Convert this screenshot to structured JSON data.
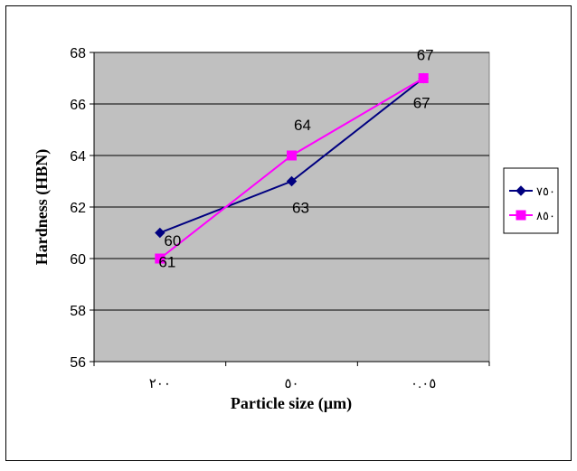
{
  "chart_data": {
    "type": "line",
    "title": "",
    "xlabel": "Particle size (µm)",
    "ylabel": "Hardness (HBN)",
    "categories": [
      "٢٠٠",
      "٥٠",
      "٠.٠٥"
    ],
    "ylim": [
      56,
      68
    ],
    "yticks": [
      "56",
      "58",
      "60",
      "62",
      "64",
      "66",
      "68"
    ],
    "grid": true,
    "legend_position": "right",
    "plot_background": "#c0c0c0",
    "series": [
      {
        "name": "٧٥٠",
        "values": [
          61,
          63,
          67
        ],
        "color": "#000080",
        "marker": "diamond",
        "labels": [
          "61",
          "63",
          "67"
        ]
      },
      {
        "name": "٨٥٠",
        "values": [
          60,
          64,
          67
        ],
        "color": "#ff00ff",
        "marker": "square",
        "labels": [
          "60",
          "64",
          "67"
        ]
      }
    ]
  }
}
